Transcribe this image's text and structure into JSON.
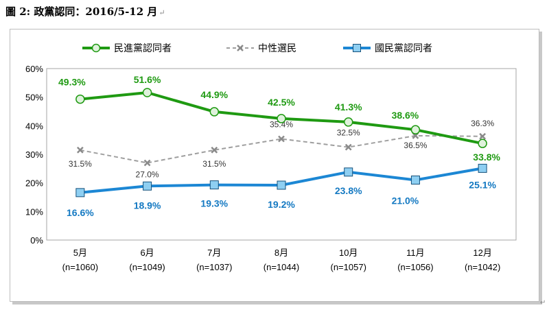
{
  "caption": {
    "label": "圖 2:  政黨認同：2016/5-12 月",
    "mark": "↵"
  },
  "chart_data": {
    "type": "line",
    "categories": [
      "5月",
      "6月",
      "7月",
      "8月",
      "10月",
      "11月",
      "12月"
    ],
    "sample_sizes": [
      "(n=1060)",
      "(n=1049)",
      "(n=1037)",
      "(n=1044)",
      "(n=1057)",
      "(n=1056)",
      "(n=1042)"
    ],
    "ylim": [
      0,
      60
    ],
    "yticks": [
      "0%",
      "10%",
      "20%",
      "30%",
      "40%",
      "50%",
      "60%"
    ],
    "grid": false,
    "legend_position": "top",
    "series": [
      {
        "name": "民進黨認同者",
        "values": [
          49.3,
          51.6,
          44.9,
          42.5,
          41.3,
          38.6,
          33.8
        ],
        "labels": [
          "49.3%",
          "51.6%",
          "44.9%",
          "42.5%",
          "41.3%",
          "38.6%",
          "33.8%"
        ],
        "color": "#1f9a12",
        "marker": "circle",
        "line": "solid"
      },
      {
        "name": "中性選民",
        "values": [
          31.5,
          27.0,
          31.5,
          35.4,
          32.5,
          36.5,
          36.3
        ],
        "labels": [
          "31.5%",
          "27.0%",
          "31.5%",
          "35.4%",
          "32.5%",
          "36.5%",
          "36.3%"
        ],
        "color": "#9e9e9e",
        "marker": "x",
        "line": "dashed"
      },
      {
        "name": "國民黨認同者",
        "values": [
          16.6,
          18.9,
          19.3,
          19.2,
          23.8,
          21.0,
          25.1
        ],
        "labels": [
          "16.6%",
          "18.9%",
          "19.3%",
          "19.2%",
          "23.8%",
          "21.0%",
          "25.1%"
        ],
        "color": "#1c87d4",
        "marker": "square",
        "line": "solid"
      }
    ]
  }
}
